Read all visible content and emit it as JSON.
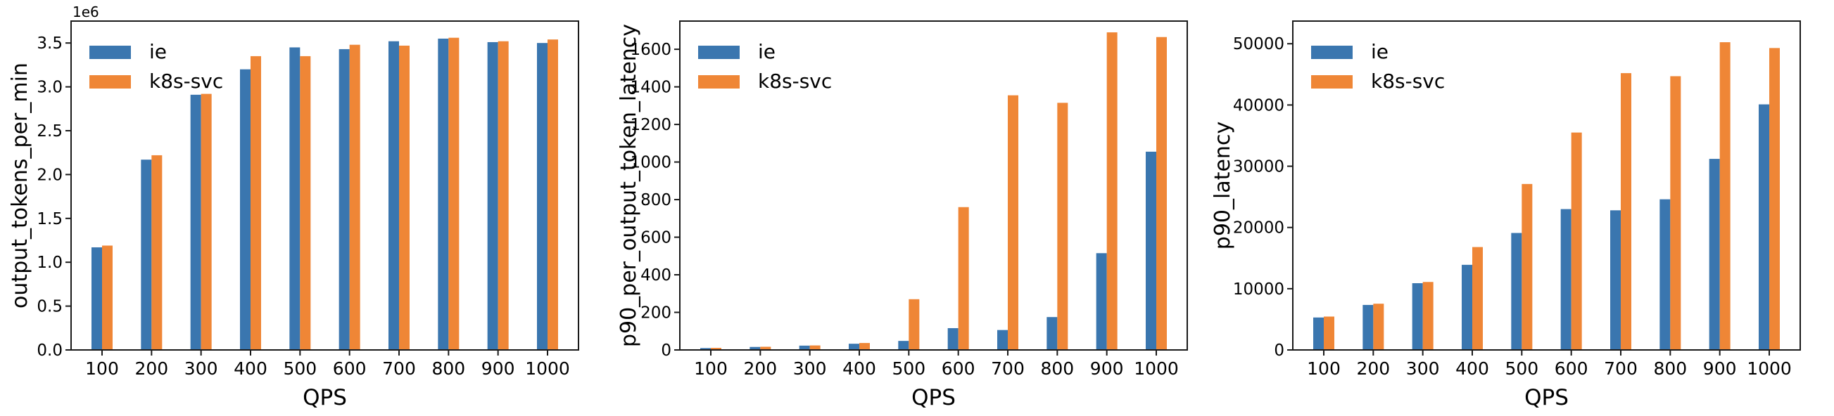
{
  "figure": {
    "background": "#ffffff",
    "series_colors": {
      "ie": "#3A76AF",
      "k8s_svc": "#EF8636"
    },
    "spine_color": "#1a1a1a"
  },
  "legend": {
    "entries": [
      {
        "label": "ie",
        "color": "#3A76AF"
      },
      {
        "label": "k8s-svc",
        "color": "#EF8636"
      }
    ],
    "position": "upper left"
  },
  "chart_data": [
    {
      "type": "bar",
      "title": "",
      "xlabel": "QPS",
      "ylabel": "output_tokens_per_min",
      "offset_text": "1e6",
      "categories": [
        "100",
        "200",
        "300",
        "400",
        "500",
        "600",
        "700",
        "800",
        "900",
        "1000"
      ],
      "series": [
        {
          "name": "ie",
          "color": "#3A76AF",
          "values": [
            1170000,
            2170000,
            2910000,
            3200000,
            3450000,
            3430000,
            3520000,
            3550000,
            3510000,
            3500000
          ]
        },
        {
          "name": "k8s-svc",
          "color": "#EF8636",
          "values": [
            1190000,
            2220000,
            2920000,
            3350000,
            3350000,
            3480000,
            3470000,
            3560000,
            3520000,
            3540000
          ]
        }
      ],
      "ylim": [
        0,
        3750000
      ],
      "yticks": [
        0,
        500000,
        1000000,
        1500000,
        2000000,
        2500000,
        3000000,
        3500000
      ],
      "ytick_labels": [
        "0.0",
        "0.5",
        "1.0",
        "1.5",
        "2.0",
        "2.5",
        "3.0",
        "3.5"
      ],
      "legend_position": "upper left",
      "grid": false
    },
    {
      "type": "bar",
      "title": "",
      "xlabel": "QPS",
      "ylabel": "p90_per_output_token_latency",
      "offset_text": "",
      "categories": [
        "100",
        "200",
        "300",
        "400",
        "500",
        "600",
        "700",
        "800",
        "900",
        "1000"
      ],
      "series": [
        {
          "name": "ie",
          "color": "#3A76AF",
          "values": [
            10,
            16,
            23,
            33,
            48,
            116,
            106,
            175,
            515,
            1055
          ]
        },
        {
          "name": "k8s-svc",
          "color": "#EF8636",
          "values": [
            11,
            17,
            24,
            37,
            270,
            760,
            1355,
            1315,
            1690,
            1665
          ]
        }
      ],
      "ylim": [
        0,
        1750
      ],
      "yticks": [
        0,
        200,
        400,
        600,
        800,
        1000,
        1200,
        1400,
        1600
      ],
      "ytick_labels": [
        "0",
        "200",
        "400",
        "600",
        "800",
        "1000",
        "1200",
        "1400",
        "1600"
      ],
      "legend_position": "upper left",
      "grid": false
    },
    {
      "type": "bar",
      "title": "",
      "xlabel": "QPS",
      "ylabel": "p90_latency",
      "offset_text": "",
      "categories": [
        "100",
        "200",
        "300",
        "400",
        "500",
        "600",
        "700",
        "800",
        "900",
        "1000"
      ],
      "series": [
        {
          "name": "ie",
          "color": "#3A76AF",
          "values": [
            5300,
            7350,
            10900,
            13900,
            19100,
            23000,
            22800,
            24600,
            31200,
            40100
          ]
        },
        {
          "name": "k8s-svc",
          "color": "#EF8636",
          "values": [
            5450,
            7550,
            11100,
            16800,
            27100,
            35500,
            45200,
            44700,
            50250,
            49300
          ]
        }
      ],
      "ylim": [
        0,
        53700
      ],
      "yticks": [
        0,
        10000,
        20000,
        30000,
        40000,
        50000
      ],
      "ytick_labels": [
        "0",
        "10000",
        "20000",
        "30000",
        "40000",
        "50000"
      ],
      "legend_position": "upper left",
      "grid": false
    }
  ]
}
